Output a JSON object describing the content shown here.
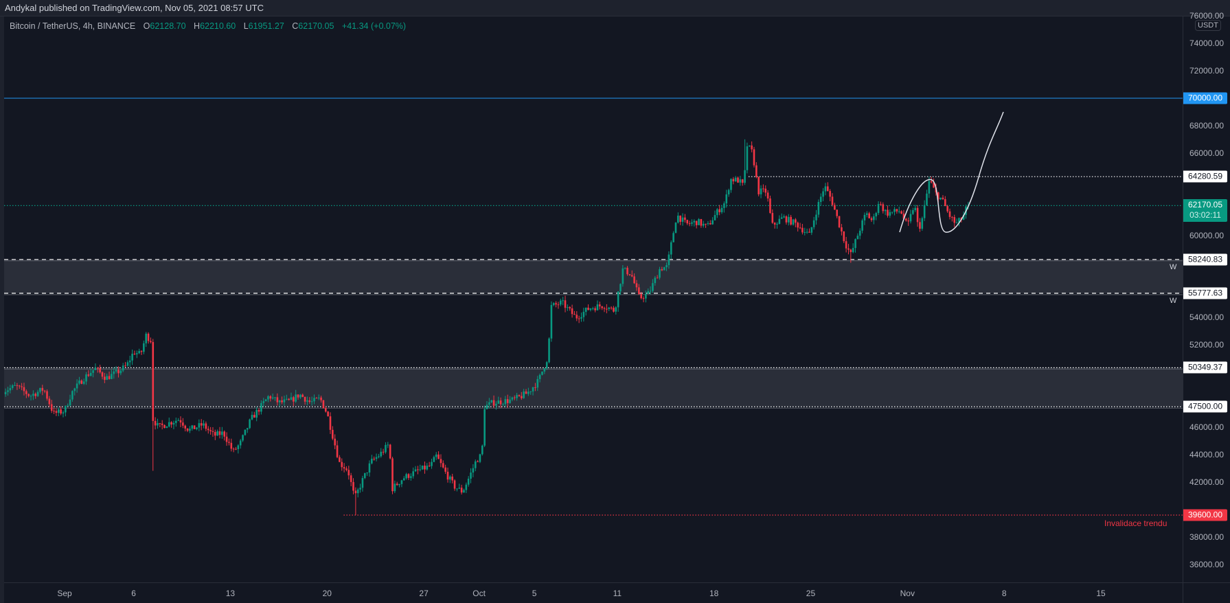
{
  "header": {
    "published": "Andykal published on TradingView.com, Nov 05, 2021 08:57 UTC"
  },
  "legend": {
    "symbol": "Bitcoin / TetherUS, 4h, BINANCE",
    "open_label": "O",
    "open": "62128.70",
    "high_label": "H",
    "high": "62210.60",
    "low_label": "L",
    "low": "61951.27",
    "close_label": "C",
    "close": "62170.05",
    "change": "+41.34 (+0.07%)"
  },
  "colors": {
    "up": "#089981",
    "down": "#f23645",
    "background": "#131722",
    "zone": "#2a2e39",
    "blue_line": "#2196f3"
  },
  "price_axis": {
    "currency": "USDT",
    "ticks": [
      "76000.00",
      "74000.00",
      "72000.00",
      "68000.00",
      "66000.00",
      "60000.00",
      "54000.00",
      "52000.00",
      "46000.00",
      "44000.00",
      "42000.00",
      "38000.00",
      "36000.00"
    ],
    "current_price": "62170.05",
    "countdown": "03:02:11"
  },
  "levels": [
    {
      "name": "target-line",
      "price": 70000,
      "label": "70000.00",
      "style": "solid",
      "color": "#2196f3"
    },
    {
      "name": "resistance-line",
      "price": 64280.59,
      "label": "64280.59",
      "style": "dotted",
      "color": "#ffffff",
      "from_day": 49.5
    },
    {
      "name": "last-price-line",
      "price": 62170.05,
      "label": "62170.05",
      "style": "dotted",
      "color": "#089981"
    },
    {
      "name": "weekly-zone-top",
      "price": 58240.83,
      "label": "58240.83",
      "style": "dashed",
      "color": "#ffffff",
      "tag": "W"
    },
    {
      "name": "weekly-zone-bottom",
      "price": 55777.63,
      "label": "55777.63",
      "style": "dashed",
      "color": "#ffffff",
      "tag": "W"
    },
    {
      "name": "support-zone-top",
      "price": 50349.37,
      "label": "50349.37",
      "style": "dotted",
      "color": "#ffffff"
    },
    {
      "name": "support-zone-bottom",
      "price": 47500.0,
      "label": "47500.00",
      "style": "dotted",
      "color": "#ffffff"
    },
    {
      "name": "invalidation-line",
      "price": 39600,
      "label": "39600.00",
      "style": "dotted",
      "color": "#f23645",
      "from_day": 20.2,
      "text": "Invalidace trendu"
    }
  ],
  "time_axis": {
    "labels": [
      {
        "text": "Sep",
        "day": 0
      },
      {
        "text": "6",
        "day": 5
      },
      {
        "text": "13",
        "day": 12
      },
      {
        "text": "20",
        "day": 19
      },
      {
        "text": "27",
        "day": 26
      },
      {
        "text": "Oct",
        "day": 30
      },
      {
        "text": "5",
        "day": 34
      },
      {
        "text": "11",
        "day": 40
      },
      {
        "text": "18",
        "day": 47
      },
      {
        "text": "25",
        "day": 54
      },
      {
        "text": "Nov",
        "day": 61
      },
      {
        "text": "8",
        "day": 68
      },
      {
        "text": "15",
        "day": 75
      }
    ]
  },
  "chart_data": {
    "type": "candlestick",
    "title": "Bitcoin / TetherUS, 4h, BINANCE",
    "interval": "4h",
    "x_unit": "days since Sep 1, 2021",
    "ylim": [
      34700,
      76000
    ],
    "close_path": [
      [
        -4.6,
        48600
      ],
      [
        -3.5,
        49000
      ],
      [
        -2.5,
        48300
      ],
      [
        -1.5,
        48800
      ],
      [
        -0.8,
        47000
      ],
      [
        0,
        47200
      ],
      [
        0.5,
        48500
      ],
      [
        1.3,
        49500
      ],
      [
        2.2,
        50300
      ],
      [
        3.0,
        49600
      ],
      [
        3.8,
        50000
      ],
      [
        4.5,
        50500
      ],
      [
        5.0,
        51500
      ],
      [
        5.5,
        51300
      ],
      [
        5.9,
        52700
      ],
      [
        6.3,
        52300
      ],
      [
        6.4,
        46600
      ],
      [
        6.8,
        46000
      ],
      [
        7.5,
        46300
      ],
      [
        8.3,
        46600
      ],
      [
        9.0,
        45800
      ],
      [
        10.0,
        46200
      ],
      [
        10.8,
        45400
      ],
      [
        11.5,
        45600
      ],
      [
        12.2,
        44200
      ],
      [
        12.7,
        44800
      ],
      [
        13.5,
        46600
      ],
      [
        14.2,
        47500
      ],
      [
        14.8,
        48300
      ],
      [
        15.5,
        47800
      ],
      [
        16.3,
        47900
      ],
      [
        17.0,
        48400
      ],
      [
        17.8,
        47800
      ],
      [
        18.5,
        48100
      ],
      [
        19.0,
        47000
      ],
      [
        19.5,
        45000
      ],
      [
        19.9,
        43400
      ],
      [
        20.5,
        42900
      ],
      [
        21.0,
        40800
      ],
      [
        21.5,
        42000
      ],
      [
        22.2,
        43500
      ],
      [
        22.8,
        44000
      ],
      [
        23.5,
        44800
      ],
      [
        23.7,
        41500
      ],
      [
        24.5,
        42300
      ],
      [
        25.5,
        42800
      ],
      [
        26.5,
        43200
      ],
      [
        26.9,
        43900
      ],
      [
        27.5,
        42800
      ],
      [
        28.2,
        41700
      ],
      [
        28.8,
        41300
      ],
      [
        29.3,
        42400
      ],
      [
        29.8,
        43600
      ],
      [
        30.2,
        44000
      ],
      [
        30.4,
        47500
      ],
      [
        31.0,
        47800
      ],
      [
        32.5,
        48000
      ],
      [
        33.5,
        48500
      ],
      [
        34.3,
        49400
      ],
      [
        35.0,
        51200
      ],
      [
        35.2,
        54800
      ],
      [
        36.0,
        55100
      ],
      [
        37.0,
        54000
      ],
      [
        38.0,
        54700
      ],
      [
        39.0,
        54900
      ],
      [
        39.8,
        54500
      ],
      [
        40.4,
        57500
      ],
      [
        41.0,
        57200
      ],
      [
        41.6,
        55400
      ],
      [
        42.3,
        55800
      ],
      [
        43.1,
        57600
      ],
      [
        43.6,
        57700
      ],
      [
        44.3,
        61500
      ],
      [
        45.0,
        60800
      ],
      [
        45.8,
        61000
      ],
      [
        46.5,
        60600
      ],
      [
        47.3,
        61800
      ],
      [
        47.8,
        62400
      ],
      [
        48.2,
        64100
      ],
      [
        48.8,
        64000
      ],
      [
        49.2,
        63500
      ],
      [
        49.3,
        66700
      ],
      [
        49.8,
        66000
      ],
      [
        50.2,
        63200
      ],
      [
        50.8,
        63200
      ],
      [
        51.2,
        60700
      ],
      [
        52.0,
        61300
      ],
      [
        53.0,
        60800
      ],
      [
        53.9,
        60000
      ],
      [
        54.5,
        62100
      ],
      [
        55.0,
        63600
      ],
      [
        55.5,
        62600
      ],
      [
        56.0,
        61000
      ],
      [
        56.5,
        59400
      ],
      [
        56.9,
        58600
      ],
      [
        57.5,
        60300
      ],
      [
        58.0,
        61600
      ],
      [
        58.5,
        61000
      ],
      [
        58.9,
        62400
      ],
      [
        59.5,
        61600
      ],
      [
        60.5,
        61800
      ],
      [
        61.0,
        60600
      ],
      [
        61.5,
        62300
      ],
      [
        61.8,
        60400
      ],
      [
        62.1,
        61300
      ],
      [
        62.4,
        63000
      ],
      [
        62.6,
        64100
      ],
      [
        63.0,
        63100
      ],
      [
        63.5,
        62600
      ],
      [
        64.0,
        61500
      ],
      [
        64.5,
        60800
      ],
      [
        65.0,
        61300
      ],
      [
        65.33,
        62170.05
      ]
    ],
    "notable_wicks": [
      {
        "day": 5.9,
        "high": 52900
      },
      {
        "day": 6.4,
        "low": 42830
      },
      {
        "day": 21.0,
        "low": 39600
      },
      {
        "day": 49.3,
        "high": 67000
      },
      {
        "day": 56.9,
        "low": 58000
      },
      {
        "day": 62.6,
        "high": 64280
      }
    ],
    "projection_path": "hand-drawn curve from Nov 1 through Nov 2 high, loop down, then up toward 69000"
  }
}
